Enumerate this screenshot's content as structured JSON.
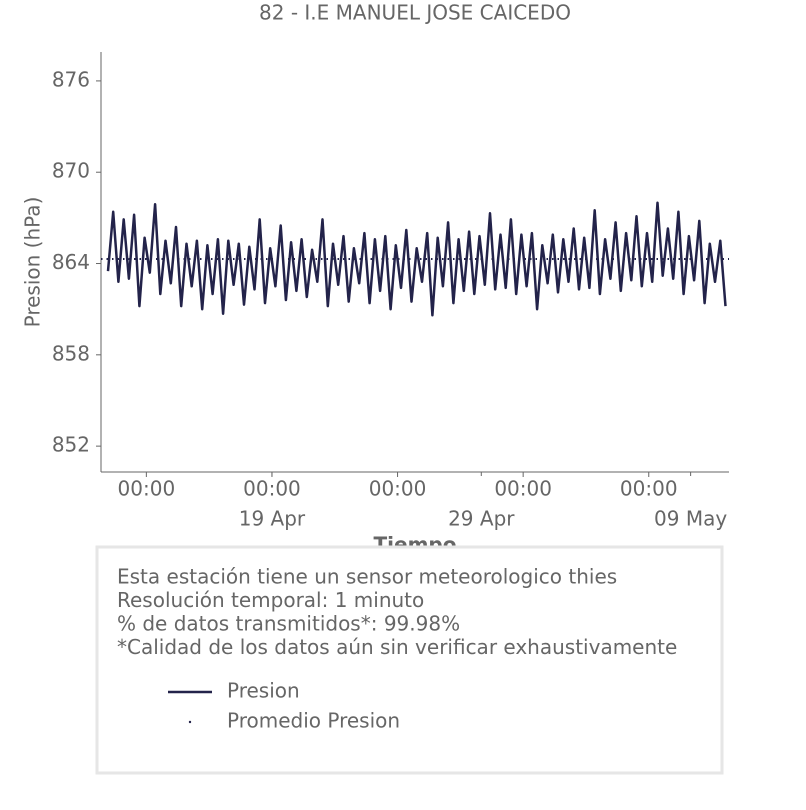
{
  "chart_data": {
    "type": "line",
    "title": "82 - I.E MANUEL JOSE CAICEDO",
    "xlabel": "Tiempo",
    "ylabel": "Presion (hPa)",
    "ylim": [
      850.3,
      877.9
    ],
    "yticks": [
      852,
      858,
      864,
      870,
      876
    ],
    "xlim": [
      "10 Apr 20:00",
      "10 May 20:00"
    ],
    "xticks": [
      {
        "value": "13 Apr 00:00",
        "label": "00:00"
      },
      {
        "value": "19 Apr 00:00",
        "label": "00:00"
      },
      {
        "value": "25 Apr 00:00",
        "label": "00:00"
      },
      {
        "value": "01 May 00:00",
        "label": "00:00"
      },
      {
        "value": "07 May 00:00",
        "label": "00:00"
      }
    ],
    "xticks_minor": [
      {
        "value": "19 Apr 00:00",
        "label": "19 Apr"
      },
      {
        "value": "29 Apr 00:00",
        "label": "29 Apr"
      },
      {
        "value": "09 May 00:00",
        "label": "09 May"
      }
    ],
    "x": [
      "11 Apr 04:00",
      "11 Apr 10:00",
      "11 Apr 16:00",
      "11 Apr 22:00",
      "12 Apr 04:00",
      "12 Apr 10:00",
      "12 Apr 16:00",
      "12 Apr 22:00",
      "13 Apr 04:00",
      "13 Apr 10:00",
      "13 Apr 16:00",
      "13 Apr 22:00",
      "14 Apr 04:00",
      "14 Apr 10:00",
      "14 Apr 16:00",
      "14 Apr 22:00",
      "15 Apr 04:00",
      "15 Apr 10:00",
      "15 Apr 16:00",
      "15 Apr 22:00",
      "16 Apr 04:00",
      "16 Apr 10:00",
      "16 Apr 16:00",
      "16 Apr 22:00",
      "17 Apr 04:00",
      "17 Apr 10:00",
      "17 Apr 16:00",
      "17 Apr 22:00",
      "18 Apr 04:00",
      "18 Apr 10:00",
      "18 Apr 16:00",
      "18 Apr 22:00",
      "19 Apr 04:00",
      "19 Apr 10:00",
      "19 Apr 16:00",
      "19 Apr 22:00",
      "20 Apr 04:00",
      "20 Apr 10:00",
      "20 Apr 16:00",
      "20 Apr 22:00",
      "21 Apr 04:00",
      "21 Apr 10:00",
      "21 Apr 16:00",
      "21 Apr 22:00",
      "22 Apr 04:00",
      "22 Apr 10:00",
      "22 Apr 16:00",
      "22 Apr 22:00",
      "23 Apr 04:00",
      "23 Apr 10:00",
      "23 Apr 16:00",
      "23 Apr 22:00",
      "24 Apr 04:00",
      "24 Apr 10:00",
      "24 Apr 16:00",
      "24 Apr 22:00",
      "25 Apr 04:00",
      "25 Apr 10:00",
      "25 Apr 16:00",
      "25 Apr 22:00",
      "26 Apr 04:00",
      "26 Apr 10:00",
      "26 Apr 16:00",
      "26 Apr 22:00",
      "27 Apr 04:00",
      "27 Apr 10:00",
      "27 Apr 16:00",
      "27 Apr 22:00",
      "28 Apr 04:00",
      "28 Apr 10:00",
      "28 Apr 16:00",
      "28 Apr 22:00",
      "29 Apr 04:00",
      "29 Apr 10:00",
      "29 Apr 16:00",
      "29 Apr 22:00",
      "30 Apr 04:00",
      "30 Apr 10:00",
      "30 Apr 16:00",
      "30 Apr 22:00",
      "01 May 04:00",
      "01 May 10:00",
      "01 May 16:00",
      "01 May 22:00",
      "02 May 04:00",
      "02 May 10:00",
      "02 May 16:00",
      "02 May 22:00",
      "03 May 04:00",
      "03 May 10:00",
      "03 May 16:00",
      "03 May 22:00",
      "04 May 04:00",
      "04 May 10:00",
      "04 May 16:00",
      "04 May 22:00",
      "05 May 04:00",
      "05 May 10:00",
      "05 May 16:00",
      "05 May 22:00",
      "06 May 04:00",
      "06 May 10:00",
      "06 May 16:00",
      "06 May 22:00",
      "07 May 04:00",
      "07 May 10:00",
      "07 May 16:00",
      "07 May 22:00",
      "08 May 04:00",
      "08 May 10:00",
      "08 May 16:00",
      "08 May 22:00",
      "09 May 04:00",
      "09 May 10:00",
      "09 May 16:00",
      "09 May 22:00",
      "10 May 04:00",
      "10 May 10:00",
      "10 May 16:00"
    ],
    "series": [
      {
        "name": "Presion",
        "color": "#23234a",
        "values": [
          863.5,
          867.4,
          862.8,
          866.9,
          863.0,
          867.2,
          861.2,
          865.7,
          863.4,
          867.9,
          862.0,
          865.5,
          862.7,
          866.4,
          861.2,
          865.3,
          862.5,
          865.5,
          861.0,
          865.2,
          862.0,
          865.6,
          860.7,
          865.5,
          862.6,
          865.3,
          861.3,
          865.1,
          862.3,
          866.9,
          861.4,
          865.0,
          862.5,
          866.5,
          861.6,
          865.4,
          862.2,
          865.6,
          861.8,
          864.9,
          862.8,
          866.9,
          861.2,
          865.3,
          862.6,
          865.8,
          861.5,
          865.0,
          862.7,
          866.0,
          861.4,
          865.6,
          862.2,
          865.8,
          861.0,
          865.2,
          862.4,
          866.2,
          861.5,
          865.0,
          862.8,
          866.0,
          860.6,
          865.7,
          862.5,
          866.7,
          861.4,
          865.6,
          862.2,
          866.1,
          862.0,
          865.8,
          862.6,
          867.3,
          862.3,
          865.9,
          862.4,
          866.9,
          862.0,
          865.9,
          862.5,
          866.0,
          861.0,
          865.2,
          862.7,
          865.9,
          862.1,
          865.6,
          862.8,
          866.3,
          862.3,
          865.7,
          862.4,
          867.5,
          862.0,
          865.6,
          863.0,
          866.7,
          862.2,
          866.0,
          862.9,
          867.1,
          862.5,
          866.0,
          862.8,
          868.0,
          863.2,
          866.3,
          863.0,
          867.4,
          862.0,
          865.8,
          862.9,
          866.8,
          861.4,
          865.3,
          862.8,
          865.5,
          861.2
        ]
      }
    ],
    "mean": {
      "name": "Promedio Presion",
      "color": "#23234a",
      "value": 864.3
    },
    "info": [
      "Esta estación tiene un sensor meteorologico thies",
      "Resolución temporal: 1 minuto",
      "% de datos transmitidos*: 99.98%",
      "*Calidad de los datos aún sin verificar exhaustivamente"
    ]
  }
}
